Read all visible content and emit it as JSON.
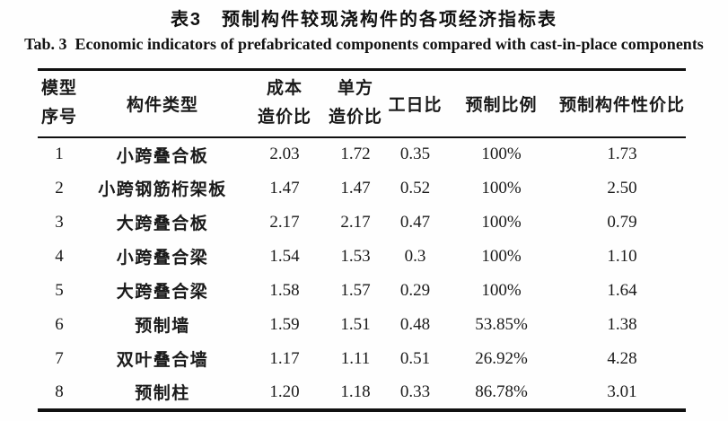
{
  "title_zh": "表3　预制构件较现浇构件的各项经济指标表",
  "title_en": "Tab. 3  Economic indicators of prefabricated components compared with cast-in-place components",
  "table": {
    "headers": [
      {
        "line1": "模型",
        "line2": "序号"
      },
      {
        "line1": "构件类型"
      },
      {
        "line1": "成本",
        "line2": "造价比"
      },
      {
        "line1": "单方",
        "line2": "造价比"
      },
      {
        "line1": "工日比"
      },
      {
        "line1": "预制比例"
      },
      {
        "line1": "预制构件性价比"
      }
    ],
    "rows": [
      [
        "1",
        "小跨叠合板",
        "2.03",
        "1.72",
        "0.35",
        "100%",
        "1.73"
      ],
      [
        "2",
        "小跨钢筋桁架板",
        "1.47",
        "1.47",
        "0.52",
        "100%",
        "2.50"
      ],
      [
        "3",
        "大跨叠合板",
        "2.17",
        "2.17",
        "0.47",
        "100%",
        "0.79"
      ],
      [
        "4",
        "小跨叠合梁",
        "1.54",
        "1.53",
        "0.3",
        "100%",
        "1.10"
      ],
      [
        "5",
        "大跨叠合梁",
        "1.58",
        "1.57",
        "0.29",
        "100%",
        "1.64"
      ],
      [
        "6",
        "预制墙",
        "1.59",
        "1.51",
        "0.48",
        "53.85%",
        "1.38"
      ],
      [
        "7",
        "双叶叠合墙",
        "1.17",
        "1.11",
        "0.51",
        "26.92%",
        "4.28"
      ],
      [
        "8",
        "预制柱",
        "1.20",
        "1.18",
        "0.33",
        "86.78%",
        "3.01"
      ]
    ],
    "column_names": [
      "model-no",
      "component-type",
      "cost-ratio",
      "unit-cost-ratio",
      "workday-ratio",
      "prefab-ratio",
      "cost-performance"
    ]
  }
}
